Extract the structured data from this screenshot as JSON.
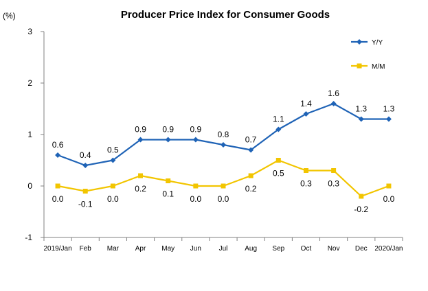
{
  "chart_data": {
    "type": "line",
    "title": "Producer Price Index for Consumer Goods",
    "y_unit": "(%)",
    "categories": [
      "2019/Jan",
      "Feb",
      "Mar",
      "Apr",
      "May",
      "Jun",
      "Jul",
      "Aug",
      "Sep",
      "Oct",
      "Nov",
      "Dec",
      "2020/Jan"
    ],
    "ylim": [
      -1,
      3
    ],
    "yticks": [
      -1,
      0,
      1,
      2,
      3
    ],
    "grid": false,
    "legend_position": "top-right",
    "series": [
      {
        "name": "Y/Y",
        "color": "#1F63B6",
        "marker": "diamond",
        "label_position": "above",
        "values": [
          0.6,
          0.4,
          0.5,
          0.9,
          0.9,
          0.9,
          0.8,
          0.7,
          1.1,
          1.4,
          1.6,
          1.3,
          1.3
        ],
        "labels": [
          "0.6",
          "0.4",
          "0.5",
          "0.9",
          "0.9",
          "0.9",
          "0.8",
          "0.7",
          "1.1",
          "1.4",
          "1.6",
          "1.3",
          "1.3"
        ]
      },
      {
        "name": "M/M",
        "color": "#F2C500",
        "marker": "square",
        "label_position": "below",
        "values": [
          0.0,
          -0.1,
          0.0,
          0.2,
          0.1,
          0.0,
          0.0,
          0.2,
          0.5,
          0.3,
          0.3,
          -0.2,
          0.0
        ],
        "labels": [
          "0.0",
          "-0.1",
          "0.0",
          "0.2",
          "0.1",
          "0.0",
          "0.0",
          "0.2",
          "0.5",
          "0.3",
          "0.3",
          "-0.2",
          "0.0"
        ]
      }
    ]
  }
}
